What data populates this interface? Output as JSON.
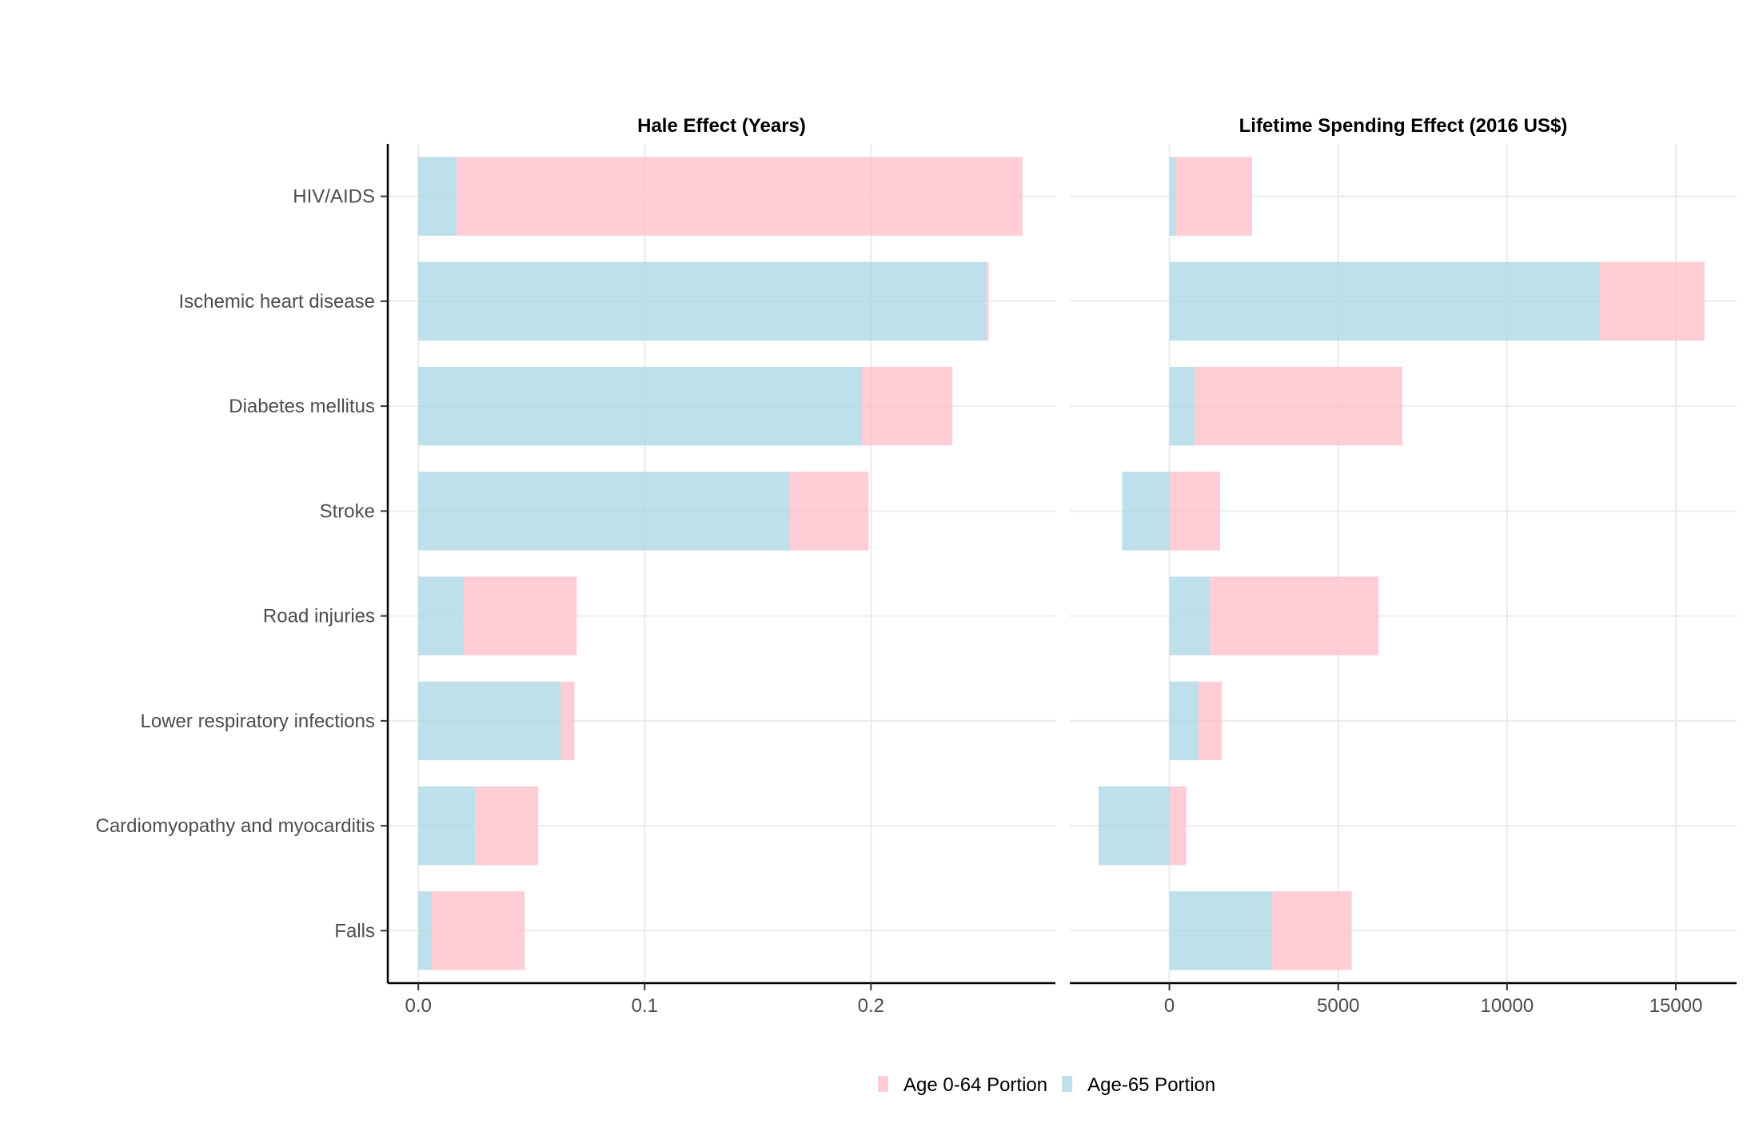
{
  "chart_data": {
    "type": "bar",
    "orientation": "horizontal",
    "stacked": true,
    "categories": [
      "HIV/AIDS",
      "Ischemic heart disease",
      "Diabetes mellitus",
      "Stroke",
      "Road injuries",
      "Lower respiratory infections",
      "Cardiomyopathy and myocarditis",
      "Falls"
    ],
    "legend": {
      "position": "bottom",
      "entries": [
        {
          "name": "Age 0-64 Portion",
          "color": "#ffc0cb"
        },
        {
          "name": "Age-65 Portion",
          "color": "#add8e6"
        }
      ]
    },
    "grid": true,
    "panels": [
      {
        "title": "Hale Effect (Years)",
        "xlim": [
          -0.0135,
          0.2815
        ],
        "ticks": [
          0.0,
          0.1,
          0.2
        ],
        "tick_labels": [
          "0.0",
          "0.1",
          "0.2"
        ],
        "series": [
          {
            "name": "Age-65 Portion",
            "values": [
              0.017,
              0.251,
              0.196,
              0.164,
              0.02,
              0.063,
              0.025,
              0.006
            ]
          },
          {
            "name": "Age 0-64 Portion",
            "values": [
              0.25,
              0.001,
              0.04,
              0.035,
              0.05,
              0.006,
              0.028,
              0.041
            ]
          }
        ]
      },
      {
        "title": "Lifetime Spending Effect (2016 US$)",
        "xlim": [
          -2950,
          16800
        ],
        "ticks": [
          0,
          5000,
          10000,
          15000
        ],
        "tick_labels": [
          "0",
          "5000",
          "10000",
          "15000"
        ],
        "series": [
          {
            "name": "Age-65 Portion",
            "values": [
              200,
              12750,
              750,
              -1400,
              1200,
              850,
              -2100,
              3050
            ]
          },
          {
            "name": "Age 0-64 Portion",
            "values": [
              2250,
              3100,
              6150,
              1500,
              5000,
              700,
              500,
              2350
            ]
          }
        ]
      }
    ]
  }
}
